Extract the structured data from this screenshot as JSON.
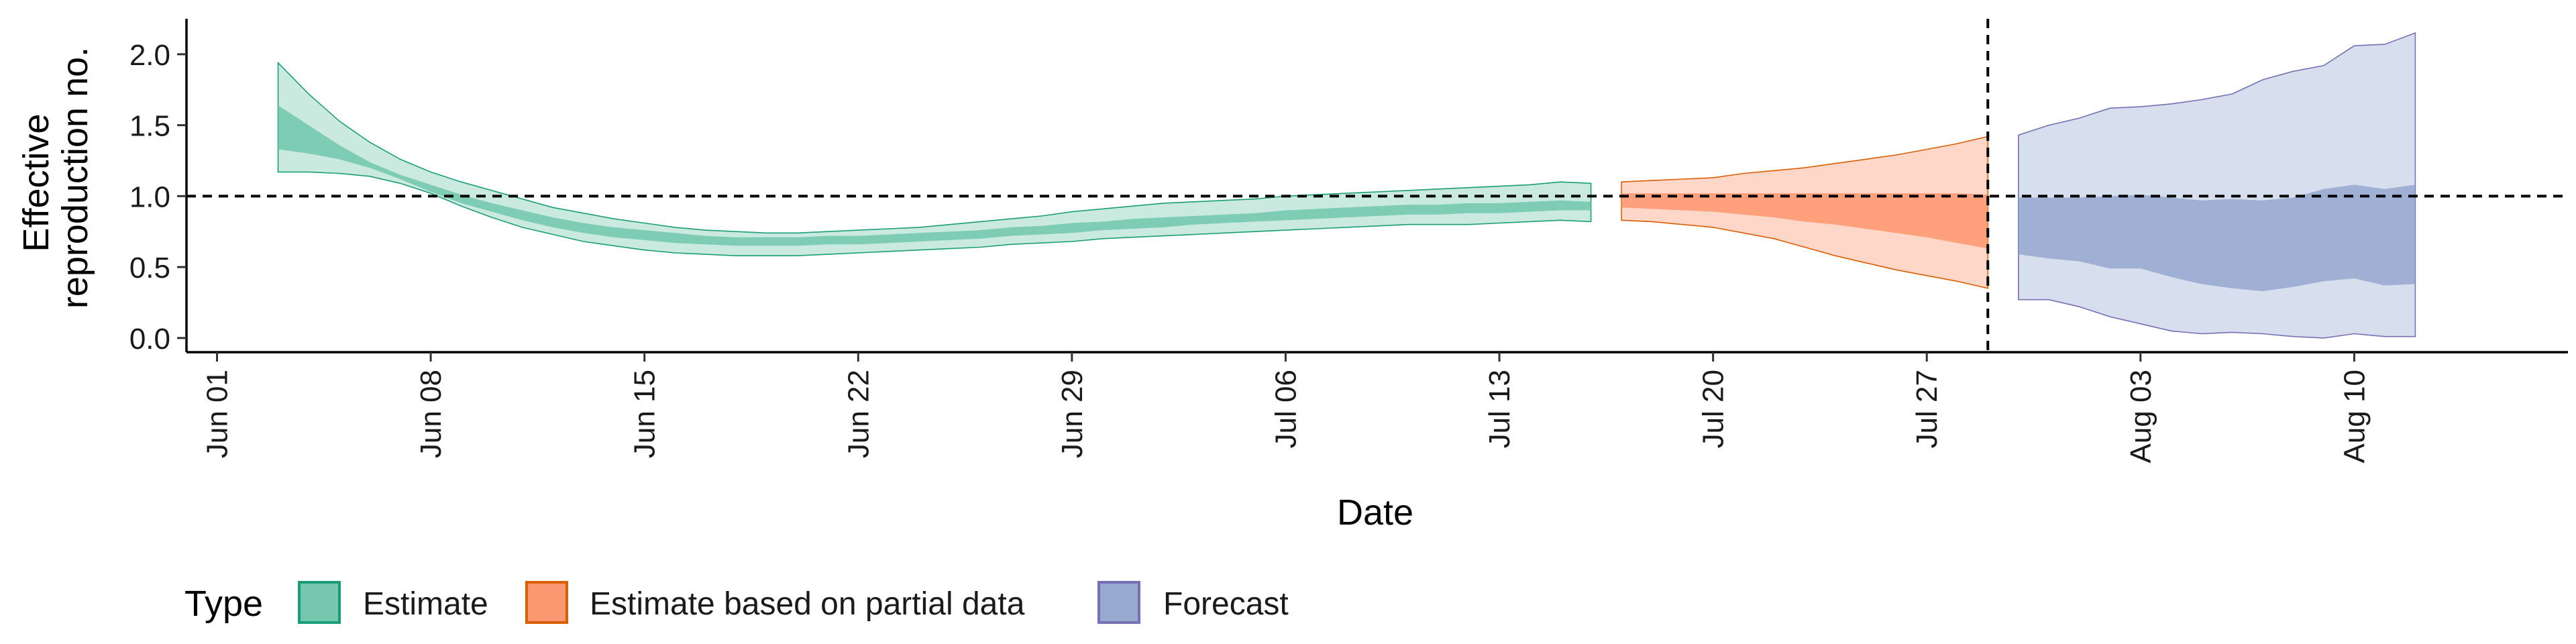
{
  "chart_data": {
    "type": "area",
    "xlabel": "Date",
    "ylabel_lines": [
      "Effective",
      "reproduction no."
    ],
    "ylim": [
      -0.1,
      2.25
    ],
    "xlim": [
      "2020-05-31",
      "2020-08-17"
    ],
    "y_ticks": [
      0.0,
      0.5,
      1.0,
      1.5,
      2.0
    ],
    "y_tick_labels": [
      "0.0",
      "0.5",
      "1.0",
      "1.5",
      "2.0"
    ],
    "x_ticks": [
      "2020-06-01",
      "2020-06-08",
      "2020-06-15",
      "2020-06-22",
      "2020-06-29",
      "2020-07-06",
      "2020-07-13",
      "2020-07-20",
      "2020-07-27",
      "2020-08-03",
      "2020-08-10"
    ],
    "x_tick_labels": [
      "Jun 01",
      "Jun 08",
      "Jun 15",
      "Jun 22",
      "Jun 29",
      "Jul 06",
      "Jul 13",
      "Jul 20",
      "Jul 27",
      "Aug 03",
      "Aug 10"
    ],
    "reference_line_y": 1.0,
    "forecast_start": "2020-07-29",
    "grid": false,
    "legend": {
      "title": "Type",
      "position": "bottom",
      "entries": [
        {
          "label": "Estimate",
          "color": "#66c2a5",
          "border": "#1b9e77"
        },
        {
          "label": "Estimate based on partial data",
          "color": "#fc8d62",
          "border": "#d95f02"
        },
        {
          "label": "Forecast",
          "color": "#8da0cb",
          "border": "#7570b3"
        }
      ]
    },
    "series": [
      {
        "name": "Estimate",
        "color": "#66c2a5",
        "border": "#1b9e77",
        "x": [
          "2020-06-03",
          "2020-06-04",
          "2020-06-05",
          "2020-06-06",
          "2020-06-07",
          "2020-06-08",
          "2020-06-09",
          "2020-06-10",
          "2020-06-11",
          "2020-06-12",
          "2020-06-13",
          "2020-06-14",
          "2020-06-15",
          "2020-06-16",
          "2020-06-17",
          "2020-06-18",
          "2020-06-19",
          "2020-06-20",
          "2020-06-21",
          "2020-06-22",
          "2020-06-23",
          "2020-06-24",
          "2020-06-25",
          "2020-06-26",
          "2020-06-27",
          "2020-06-28",
          "2020-06-29",
          "2020-06-30",
          "2020-07-01",
          "2020-07-02",
          "2020-07-03",
          "2020-07-04",
          "2020-07-05",
          "2020-07-06",
          "2020-07-07",
          "2020-07-08",
          "2020-07-09",
          "2020-07-10",
          "2020-07-11",
          "2020-07-12",
          "2020-07-13",
          "2020-07-14",
          "2020-07-15",
          "2020-07-16"
        ],
        "lower_90": [
          1.17,
          1.17,
          1.16,
          1.14,
          1.09,
          1.02,
          0.93,
          0.85,
          0.78,
          0.73,
          0.68,
          0.65,
          0.62,
          0.6,
          0.59,
          0.58,
          0.58,
          0.58,
          0.59,
          0.6,
          0.61,
          0.62,
          0.63,
          0.64,
          0.66,
          0.67,
          0.68,
          0.7,
          0.71,
          0.72,
          0.73,
          0.74,
          0.75,
          0.76,
          0.77,
          0.78,
          0.79,
          0.8,
          0.8,
          0.8,
          0.81,
          0.82,
          0.83,
          0.82
        ],
        "upper_90": [
          1.94,
          1.72,
          1.53,
          1.38,
          1.26,
          1.17,
          1.1,
          1.04,
          0.98,
          0.92,
          0.88,
          0.84,
          0.81,
          0.78,
          0.76,
          0.75,
          0.74,
          0.74,
          0.75,
          0.76,
          0.77,
          0.78,
          0.8,
          0.82,
          0.84,
          0.86,
          0.89,
          0.91,
          0.93,
          0.95,
          0.96,
          0.97,
          0.98,
          1.0,
          1.01,
          1.02,
          1.03,
          1.04,
          1.05,
          1.06,
          1.07,
          1.08,
          1.1,
          1.09
        ],
        "lower_50": [
          1.33,
          1.3,
          1.26,
          1.2,
          1.12,
          1.03,
          0.95,
          0.89,
          0.83,
          0.78,
          0.74,
          0.71,
          0.69,
          0.67,
          0.66,
          0.65,
          0.65,
          0.65,
          0.66,
          0.66,
          0.67,
          0.68,
          0.69,
          0.7,
          0.72,
          0.73,
          0.74,
          0.76,
          0.77,
          0.78,
          0.8,
          0.81,
          0.82,
          0.83,
          0.84,
          0.85,
          0.86,
          0.87,
          0.87,
          0.88,
          0.88,
          0.89,
          0.9,
          0.9
        ],
        "upper_50": [
          1.64,
          1.5,
          1.36,
          1.24,
          1.15,
          1.08,
          1.01,
          0.95,
          0.9,
          0.85,
          0.81,
          0.78,
          0.76,
          0.74,
          0.72,
          0.71,
          0.71,
          0.71,
          0.72,
          0.72,
          0.73,
          0.74,
          0.75,
          0.76,
          0.78,
          0.79,
          0.81,
          0.82,
          0.84,
          0.85,
          0.86,
          0.87,
          0.88,
          0.9,
          0.91,
          0.92,
          0.93,
          0.94,
          0.94,
          0.95,
          0.95,
          0.96,
          0.97,
          0.96
        ]
      },
      {
        "name": "Estimate based on partial data",
        "color": "#fc8d62",
        "border": "#d95f02",
        "x": [
          "2020-07-17",
          "2020-07-18",
          "2020-07-19",
          "2020-07-20",
          "2020-07-21",
          "2020-07-22",
          "2020-07-23",
          "2020-07-24",
          "2020-07-25",
          "2020-07-26",
          "2020-07-27",
          "2020-07-28",
          "2020-07-29"
        ],
        "lower_90": [
          0.83,
          0.82,
          0.8,
          0.78,
          0.74,
          0.7,
          0.64,
          0.58,
          0.53,
          0.48,
          0.44,
          0.4,
          0.35
        ],
        "upper_90": [
          1.1,
          1.11,
          1.12,
          1.13,
          1.16,
          1.18,
          1.2,
          1.23,
          1.26,
          1.29,
          1.33,
          1.37,
          1.42
        ],
        "lower_50": [
          0.92,
          0.91,
          0.9,
          0.89,
          0.87,
          0.85,
          0.82,
          0.8,
          0.77,
          0.74,
          0.71,
          0.67,
          0.63
        ],
        "upper_50": [
          1.02,
          1.02,
          1.02,
          1.02,
          1.02,
          1.02,
          1.02,
          1.02,
          1.02,
          1.02,
          1.02,
          1.02,
          1.01
        ]
      },
      {
        "name": "Forecast",
        "color": "#8da0cb",
        "border": "#7570b3",
        "x": [
          "2020-07-30",
          "2020-07-31",
          "2020-08-01",
          "2020-08-02",
          "2020-08-03",
          "2020-08-04",
          "2020-08-05",
          "2020-08-06",
          "2020-08-07",
          "2020-08-08",
          "2020-08-09",
          "2020-08-10",
          "2020-08-11",
          "2020-08-12"
        ],
        "lower_90": [
          0.27,
          0.27,
          0.22,
          0.15,
          0.1,
          0.05,
          0.03,
          0.04,
          0.03,
          0.01,
          0.0,
          0.03,
          0.01,
          0.01
        ],
        "upper_90": [
          1.43,
          1.5,
          1.55,
          1.62,
          1.63,
          1.65,
          1.68,
          1.72,
          1.82,
          1.88,
          1.92,
          2.06,
          2.07,
          2.15
        ],
        "lower_50": [
          0.59,
          0.56,
          0.54,
          0.49,
          0.49,
          0.43,
          0.38,
          0.35,
          0.33,
          0.36,
          0.4,
          0.42,
          0.37,
          0.38
        ],
        "upper_50": [
          0.99,
          0.99,
          0.99,
          1.0,
          1.01,
          0.99,
          0.97,
          0.98,
          0.97,
          0.99,
          1.05,
          1.08,
          1.05,
          1.08
        ]
      }
    ]
  }
}
